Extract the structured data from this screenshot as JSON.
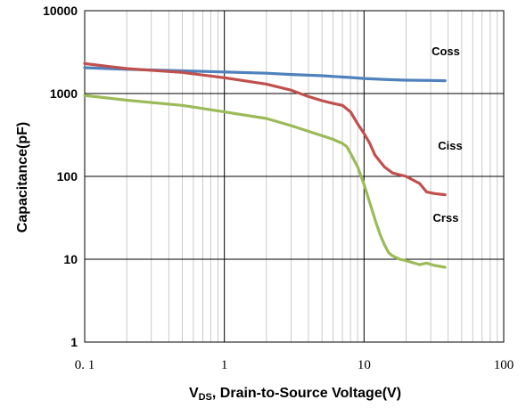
{
  "chart_data": {
    "type": "line",
    "title": "",
    "xlabel": {
      "prefix": "V",
      "subscript": "DS",
      "rest": ", Drain-to-Source Voltage(V)"
    },
    "ylabel": "Capacitance(pF)",
    "xscale": "log",
    "yscale": "log",
    "xlim": [
      0.1,
      100
    ],
    "ylim": [
      1,
      10000
    ],
    "grid": true,
    "x_tick_labels": [
      "0. 1",
      "1",
      "10",
      "100"
    ],
    "y_tick_labels": [
      "10000",
      "1000",
      "100",
      "10",
      "1"
    ],
    "series": [
      {
        "name": "Coss",
        "color": "#4f81bd",
        "x": [
          0.1,
          0.2,
          0.5,
          1,
          2,
          3,
          5,
          8,
          10,
          15,
          20,
          30,
          38
        ],
        "y": [
          2050,
          1960,
          1880,
          1820,
          1760,
          1700,
          1640,
          1560,
          1520,
          1470,
          1450,
          1440,
          1430
        ]
      },
      {
        "name": "Ciss",
        "color": "#c0504d",
        "x": [
          0.1,
          0.2,
          0.5,
          1,
          2,
          3,
          4,
          5,
          6,
          7,
          8,
          9,
          10,
          11,
          12,
          14,
          16,
          20,
          25,
          28,
          32,
          38
        ],
        "y": [
          2300,
          2000,
          1800,
          1550,
          1300,
          1100,
          920,
          820,
          760,
          720,
          600,
          430,
          330,
          250,
          180,
          130,
          110,
          100,
          82,
          65,
          62,
          60
        ]
      },
      {
        "name": "Crss",
        "color": "#9bbb59",
        "x": [
          0.1,
          0.2,
          0.5,
          1,
          2,
          3,
          4,
          5,
          6,
          7,
          7.5,
          8,
          9,
          10,
          11,
          12,
          13,
          14,
          15,
          16,
          18,
          20,
          25,
          28,
          32,
          38
        ],
        "y": [
          950,
          830,
          720,
          600,
          500,
          410,
          350,
          310,
          280,
          250,
          230,
          190,
          130,
          80,
          48,
          30,
          20,
          15,
          12,
          11,
          10,
          9.6,
          8.6,
          9.0,
          8.4,
          8.0
        ]
      }
    ]
  }
}
